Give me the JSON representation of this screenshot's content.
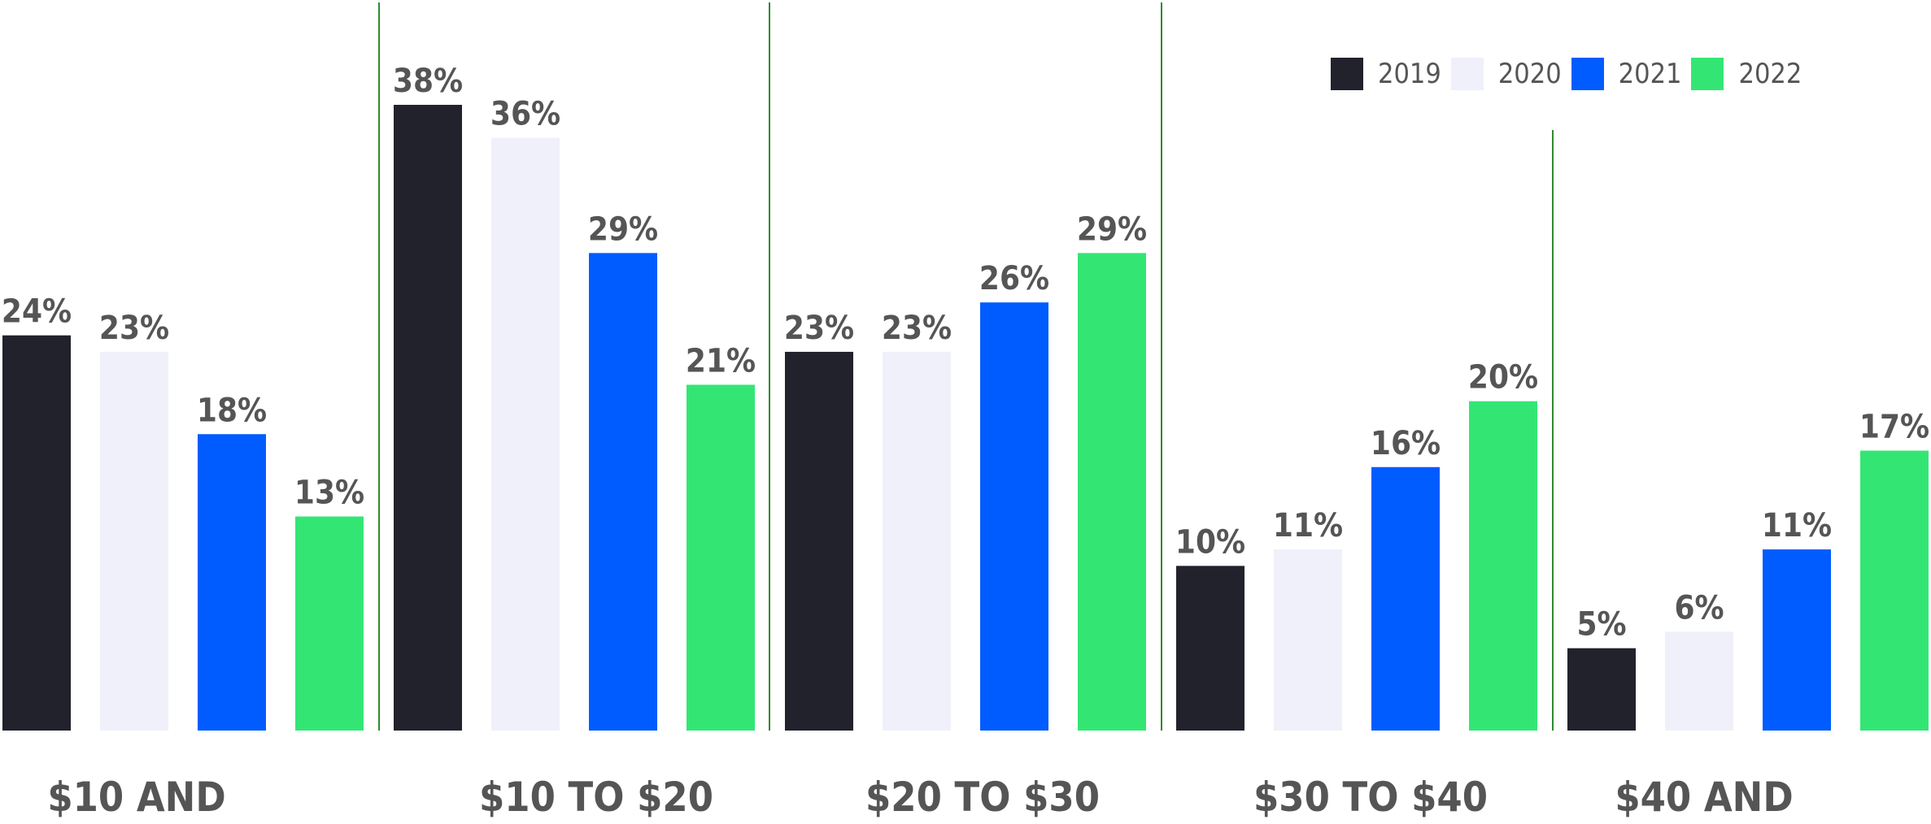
{
  "chart_data": {
    "type": "bar",
    "title": "",
    "xlabel": "",
    "ylabel": "",
    "ylim": [
      0,
      38
    ],
    "grid": false,
    "legend_position": "top-right",
    "categories": [
      "$10 AND",
      "$10 TO $20",
      "$20 TO $30",
      "$30 TO $40",
      "$40 AND"
    ],
    "series": [
      {
        "name": "2019",
        "color": "#21222b",
        "values": [
          24,
          38,
          23,
          10,
          5
        ],
        "labels": [
          "24%",
          "38%",
          "23%",
          "10%",
          "5%"
        ]
      },
      {
        "name": "2020",
        "color": "#f0f0fa",
        "values": [
          23,
          36,
          23,
          11,
          6
        ],
        "labels": [
          "23%",
          "36%",
          "23%",
          "11%",
          "6%"
        ]
      },
      {
        "name": "2021",
        "color": "#005cff",
        "values": [
          18,
          29,
          26,
          16,
          11
        ],
        "labels": [
          "18%",
          "29%",
          "26%",
          "16%",
          "11%"
        ]
      },
      {
        "name": "2022",
        "color": "#33e674",
        "values": [
          13,
          21,
          29,
          20,
          17
        ],
        "labels": [
          "13%",
          "21%",
          "29%",
          "20%",
          "17%"
        ]
      }
    ],
    "divider_color": "#2e8b2e",
    "label_color": "#555555"
  }
}
